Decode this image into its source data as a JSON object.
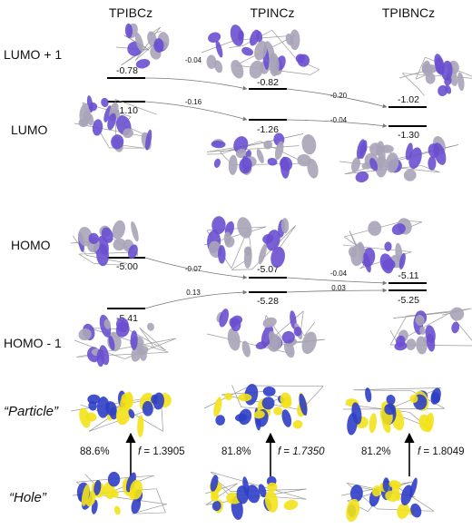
{
  "columns": [
    "TPIBCz",
    "TPINCz",
    "TPIBNCz"
  ],
  "rows": {
    "lumo1": "LUMO + 1",
    "lumo": "LUMO",
    "homo": "HOMO",
    "homo1": "HOMO - 1",
    "particle": "“Particle”",
    "hole": "“Hole”"
  },
  "energies": {
    "lumo1": [
      "-0.78",
      "-0.82",
      "-1.02"
    ],
    "lumo": [
      "-1.10",
      "-1.26",
      "-1.30"
    ],
    "homo": [
      "-5.00",
      "-5.07",
      "-5.11"
    ],
    "homo1": [
      "-5.41",
      "-5.28",
      "-5.25"
    ]
  },
  "differences": {
    "lumo1": [
      "-0.04",
      "-0.20"
    ],
    "lumo": [
      "-0.16",
      "-0.04"
    ],
    "homo": [
      "-0.07",
      "-0.04"
    ],
    "homo1": [
      "0.13",
      "0.03"
    ]
  },
  "transitions": [
    {
      "percent": "88.6%",
      "f_label": "f",
      "f_value": "1.3905"
    },
    {
      "percent": "81.8%",
      "f_label": "f",
      "f_value": "1.7350"
    },
    {
      "percent": "81.2%",
      "f_label": "f",
      "f_value": "1.8049"
    }
  ],
  "colors": {
    "orbital_purple": "#6a4fd0",
    "orbital_grey": "#a8a4b8",
    "ntd_blue": "#2f3fc7",
    "ntd_yellow": "#f2e21a",
    "line": "#000000",
    "connector": "#777777"
  }
}
